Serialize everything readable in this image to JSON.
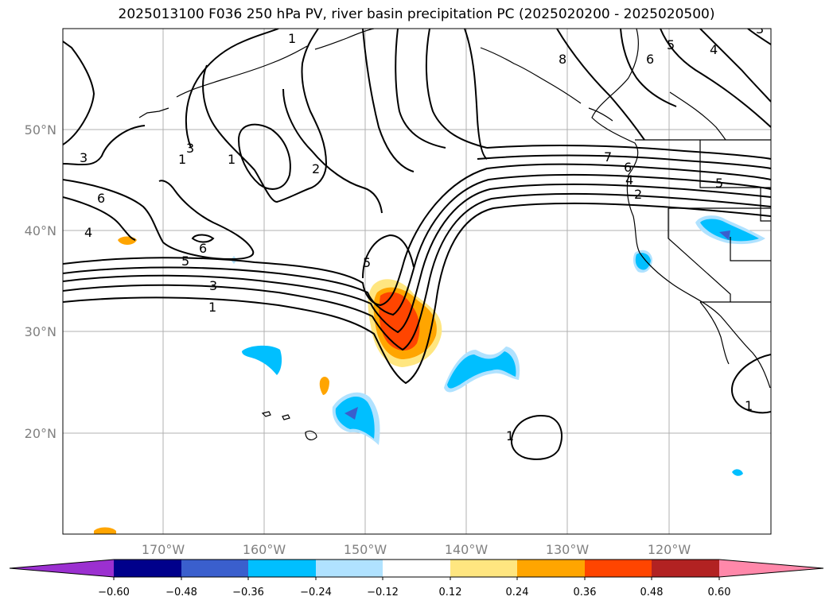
{
  "title": "2025013100 F036 250 hPa PV, river basin precipitation PC (2025020200 - 2025020500)",
  "map": {
    "lat_labels": [
      "50°N",
      "40°N",
      "30°N",
      "20°N"
    ],
    "lon_labels": [
      "170°W",
      "160°W",
      "150°W",
      "140°W",
      "130°W",
      "120°W"
    ],
    "contour_labels": [
      "1",
      "2",
      "3",
      "4",
      "5",
      "6",
      "7",
      "1",
      "2",
      "3",
      "5",
      "6",
      "1",
      "2",
      "3",
      "4",
      "5",
      "6",
      "8",
      "5",
      "6",
      "4",
      "1"
    ]
  },
  "colorbar": {
    "tick_labels": [
      "−0.60",
      "−0.48",
      "−0.36",
      "−0.24",
      "−0.12",
      "0.12",
      "0.24",
      "0.36",
      "0.48",
      "0.60"
    ],
    "colors": [
      "#9b30d0",
      "#00008b",
      "#3a5fcd",
      "#00bfff",
      "#b0e2ff",
      "#ffffff",
      "#ffe680",
      "#ffa500",
      "#ff4500",
      "#b22222",
      "#ff88aa"
    ]
  }
}
